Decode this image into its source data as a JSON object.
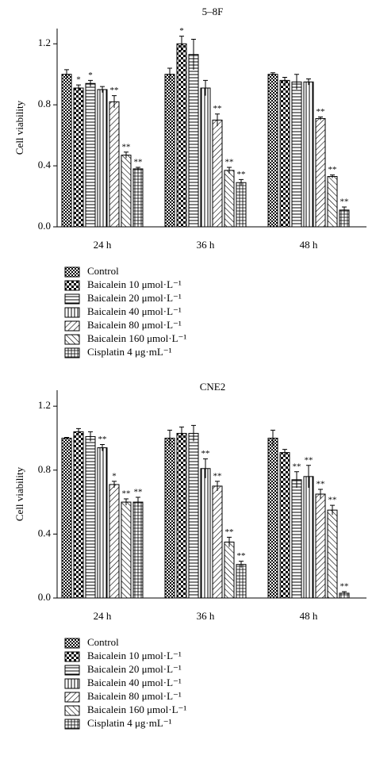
{
  "chart_data": [
    {
      "type": "bar",
      "title": "5–8F",
      "y_label": "Cell viability",
      "categories": [
        "24 h",
        "36 h",
        "48 h"
      ],
      "ylim": [
        0,
        1.3
      ],
      "yticks": [
        {
          "value": 0,
          "label": "0.0"
        },
        0.4,
        0.8,
        1.2
      ],
      "series": [
        {
          "name": "Control",
          "pattern": "fine-checker",
          "values": [
            1.0,
            1.0,
            1.0
          ],
          "errors": [
            0.03,
            0.04,
            0.01
          ],
          "significance": [
            null,
            null,
            null
          ]
        },
        {
          "name": "Baicalein 10 μmol·L⁻¹",
          "pattern": "checker",
          "values": [
            0.91,
            1.2,
            0.96
          ],
          "errors": [
            0.02,
            0.05,
            0.02
          ],
          "significance": [
            "*",
            "*",
            null
          ]
        },
        {
          "name": "Baicalein 20 μmol·L⁻¹",
          "pattern": "hlines",
          "values": [
            0.94,
            1.13,
            0.95
          ],
          "errors": [
            0.02,
            0.1,
            0.05
          ],
          "significance": [
            "*",
            null,
            null
          ]
        },
        {
          "name": "Baicalein 40 μmol·L⁻¹",
          "pattern": "vlines",
          "values": [
            0.9,
            0.91,
            0.95
          ],
          "errors": [
            0.02,
            0.05,
            0.02
          ],
          "significance": [
            null,
            null,
            null
          ]
        },
        {
          "name": "Baicalein 80 μmol·L⁻¹",
          "pattern": "diag-right",
          "values": [
            0.82,
            0.7,
            0.71
          ],
          "errors": [
            0.04,
            0.04,
            0.01
          ],
          "significance": [
            "**",
            "**",
            "**"
          ]
        },
        {
          "name": "Baicalein 160 μmol·L⁻¹",
          "pattern": "diag-left",
          "values": [
            0.47,
            0.37,
            0.33
          ],
          "errors": [
            0.02,
            0.02,
            0.01
          ],
          "significance": [
            "**",
            "**",
            "**"
          ]
        },
        {
          "name": "Cisplatin 4 μg·mL⁻¹",
          "pattern": "grid",
          "values": [
            0.38,
            0.29,
            0.11
          ],
          "errors": [
            0.01,
            0.02,
            0.02
          ],
          "significance": [
            "**",
            "**",
            "**"
          ]
        }
      ]
    },
    {
      "type": "bar",
      "title": "CNE2",
      "y_label": "Cell viability",
      "categories": [
        "24 h",
        "36 h",
        "48 h"
      ],
      "ylim": [
        0,
        1.3
      ],
      "yticks": [
        {
          "value": 0,
          "label": "0.0"
        },
        0.4,
        0.8,
        1.2
      ],
      "series": [
        {
          "name": "Control",
          "pattern": "fine-checker",
          "values": [
            1.0,
            1.0,
            1.0
          ],
          "errors": [
            0.005,
            0.05,
            0.05
          ],
          "significance": [
            null,
            null,
            null
          ]
        },
        {
          "name": "Baicalein 10 μmol·L⁻¹",
          "pattern": "checker",
          "values": [
            1.04,
            1.03,
            0.91
          ],
          "errors": [
            0.02,
            0.04,
            0.02
          ],
          "significance": [
            null,
            null,
            null
          ]
        },
        {
          "name": "Baicalein 20 μmol·L⁻¹",
          "pattern": "hlines",
          "values": [
            1.01,
            1.03,
            0.74
          ],
          "errors": [
            0.03,
            0.05,
            0.05
          ],
          "significance": [
            null,
            null,
            "**"
          ]
        },
        {
          "name": "Baicalein 40 μmol·L⁻¹",
          "pattern": "vlines",
          "values": [
            0.94,
            0.81,
            0.76
          ],
          "errors": [
            0.02,
            0.06,
            0.07
          ],
          "significance": [
            "**",
            "**",
            "**"
          ]
        },
        {
          "name": "Baicalein 80 μmol·L⁻¹",
          "pattern": "diag-right",
          "values": [
            0.71,
            0.7,
            0.65
          ],
          "errors": [
            0.02,
            0.03,
            0.03
          ],
          "significance": [
            "*",
            "**",
            "**"
          ]
        },
        {
          "name": "Baicalein 160 μmol·L⁻¹",
          "pattern": "diag-left",
          "values": [
            0.6,
            0.35,
            0.55
          ],
          "errors": [
            0.02,
            0.03,
            0.03
          ],
          "significance": [
            "**",
            "**",
            "**"
          ]
        },
        {
          "name": "Cisplatin 4 μg·mL⁻¹",
          "pattern": "grid",
          "values": [
            0.6,
            0.21,
            0.03
          ],
          "errors": [
            0.03,
            0.02,
            0.01
          ],
          "significance": [
            "**",
            "**",
            "**"
          ]
        }
      ]
    }
  ]
}
